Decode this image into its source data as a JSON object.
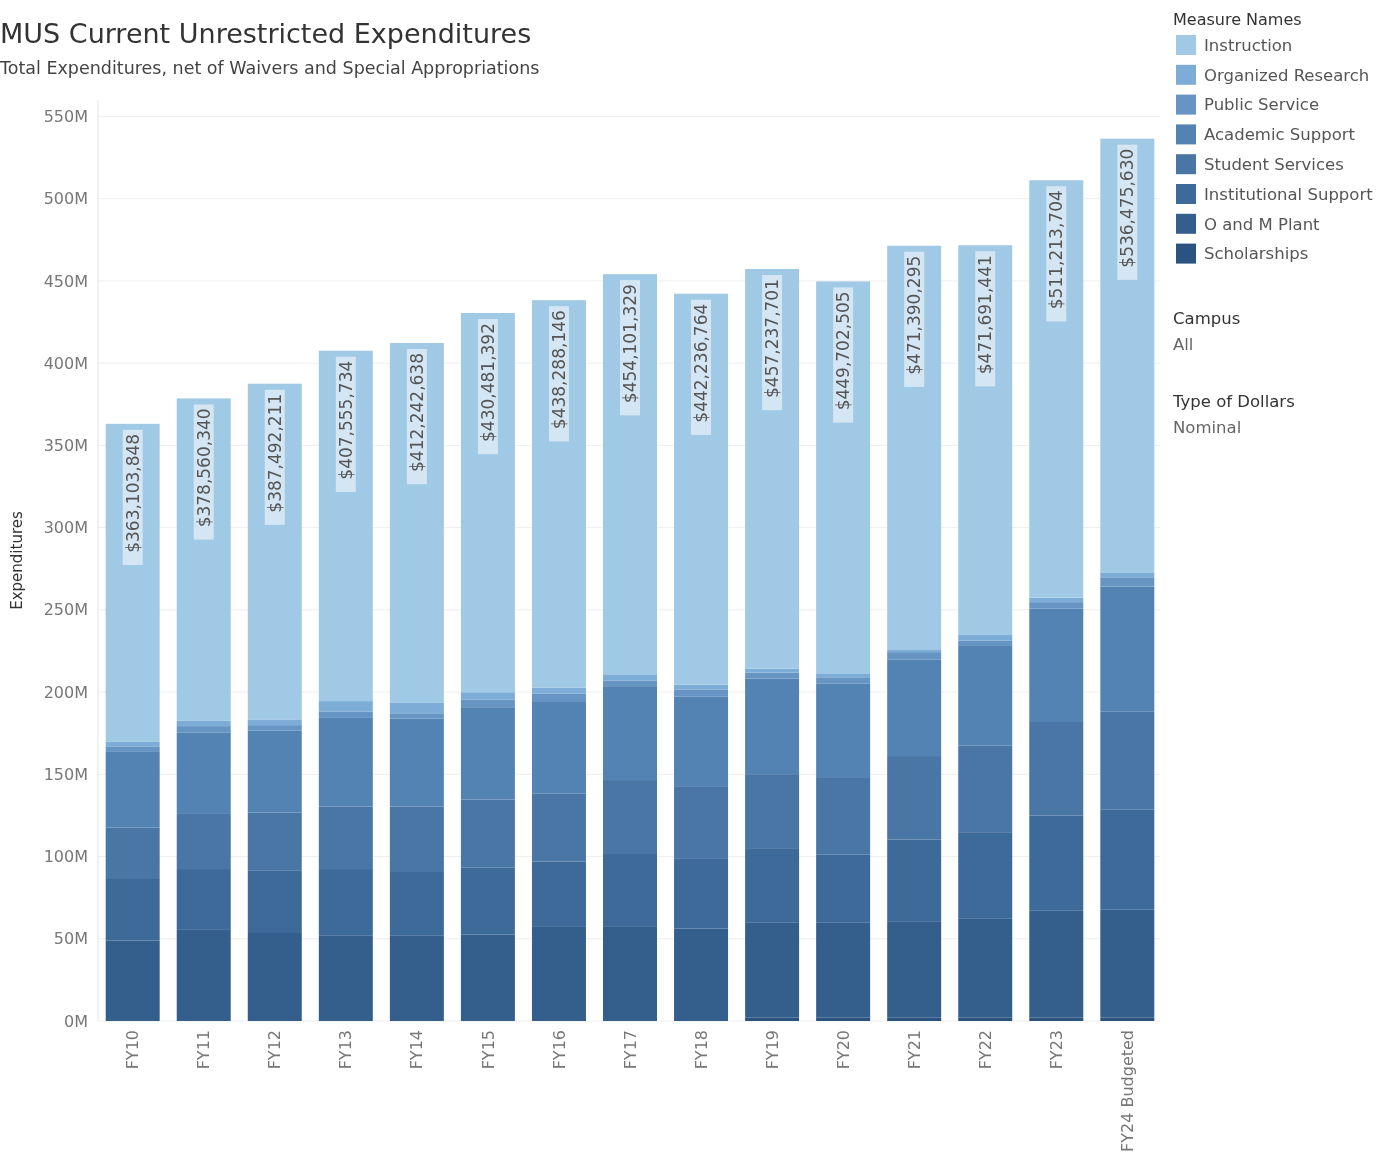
{
  "chart_data": {
    "type": "bar",
    "title": "MUS Current Unrestricted Expenditures",
    "subtitle": "Total Expenditures, net of Waivers and Special Appropriations",
    "ylabel": "Expenditures",
    "legend_title": "Measure Names",
    "categories": [
      "FY10",
      "FY11",
      "FY12",
      "FY13",
      "FY14",
      "FY15",
      "FY16",
      "FY17",
      "FY18",
      "FY19",
      "FY20",
      "FY21",
      "FY22",
      "FY23",
      "FY24 Budgeted"
    ],
    "stacked": true,
    "series": [
      {
        "name": "Scholarships",
        "color": "#2b5380",
        "values": [
          0,
          0,
          0,
          0,
          0,
          0,
          0,
          0,
          0,
          2000000,
          2000000,
          2000000,
          2000000,
          2000000,
          2000000
        ]
      },
      {
        "name": "O and M Plant",
        "color": "#345f8d",
        "values": [
          49000000,
          55400000,
          53500000,
          51800000,
          51800000,
          52600000,
          57200000,
          57200000,
          56300000,
          57700000,
          57700000,
          58700000,
          60500000,
          65000000,
          65900000
        ]
      },
      {
        "name": "Institutional Support",
        "color": "#3d6a99",
        "values": [
          37900000,
          37000000,
          37800000,
          40600000,
          38800000,
          40600000,
          39800000,
          44900000,
          42700000,
          45400000,
          41400000,
          49700000,
          52300000,
          58000000,
          60800000
        ]
      },
      {
        "name": "Student Services",
        "color": "#4976a5",
        "values": [
          30800000,
          33500000,
          35400000,
          38000000,
          39800000,
          41500000,
          41200000,
          44400000,
          43800000,
          45000000,
          47200000,
          50700000,
          52600000,
          56800000,
          59600000
        ]
      },
      {
        "name": "Academic Support",
        "color": "#5383b3",
        "values": [
          45900000,
          49600000,
          49800000,
          54300000,
          53400000,
          56100000,
          56300000,
          57100000,
          54600000,
          58100000,
          57000000,
          58800000,
          60600000,
          68900000,
          75800000
        ]
      },
      {
        "name": "Public Service",
        "color": "#6695c4",
        "values": [
          3400000,
          3800000,
          3400000,
          3300000,
          3300000,
          4500000,
          4500000,
          3500000,
          4200000,
          3600000,
          3700000,
          4400000,
          3400000,
          4000000,
          5700000
        ]
      },
      {
        "name": "Organized Research",
        "color": "#7dadd6",
        "values": [
          2700000,
          3200000,
          3500000,
          6500000,
          6300000,
          4600000,
          3700000,
          3700000,
          2900000,
          2400000,
          2400000,
          1700000,
          3700000,
          2700000,
          3000000
        ]
      },
      {
        "name": "Instruction",
        "color": "#a0c9e5",
        "values": [
          193403848,
          196060340,
          204092211,
          213055734,
          218842638,
          230581392,
          235588146,
          243301329,
          237736764,
          243037701,
          238302505,
          245390295,
          236591441,
          253813704,
          263675630
        ]
      }
    ],
    "totals": [
      "$363,103,848",
      "$378,560,340",
      "$387,492,211",
      "$407,555,734",
      "$412,242,638",
      "$430,481,392",
      "$438,288,146",
      "$454,101,329",
      "$442,236,764",
      "$457,237,701",
      "$449,702,505",
      "$471,390,295",
      "$471,691,441",
      "$511,213,704",
      "$536,475,630"
    ],
    "ylim": [
      0,
      560000000
    ],
    "yticks": [
      {
        "value": 0,
        "label": "0M"
      },
      {
        "value": 50000000,
        "label": "50M"
      },
      {
        "value": 100000000,
        "label": "100M"
      },
      {
        "value": 150000000,
        "label": "150M"
      },
      {
        "value": 200000000,
        "label": "200M"
      },
      {
        "value": 250000000,
        "label": "250M"
      },
      {
        "value": 300000000,
        "label": "300M"
      },
      {
        "value": 350000000,
        "label": "350M"
      },
      {
        "value": 400000000,
        "label": "400M"
      },
      {
        "value": 450000000,
        "label": "450M"
      },
      {
        "value": 500000000,
        "label": "500M"
      },
      {
        "value": 550000000,
        "label": "550M"
      }
    ],
    "grid": "y",
    "legend": "right",
    "annotations": [
      "Campus",
      "All",
      "Type of Dollars",
      "Nominal"
    ]
  }
}
